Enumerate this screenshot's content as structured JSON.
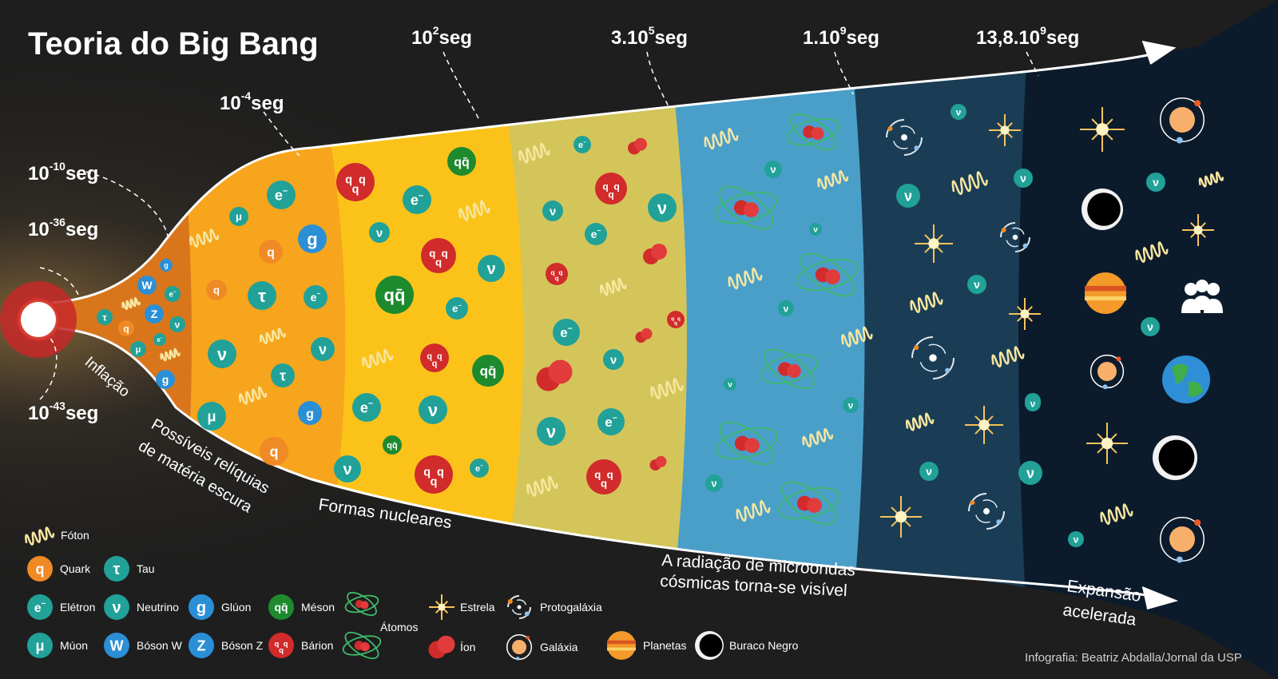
{
  "title": "Teoria do Big Bang",
  "credit": "Infografia: Beatriz Abdalla/Jornal da USP",
  "times": [
    {
      "base": "10",
      "exp": "-43",
      "unit": "seg"
    },
    {
      "base": "10",
      "exp": "-36",
      "unit": "seg"
    },
    {
      "base": "10",
      "exp": "-10",
      "unit": "seg"
    },
    {
      "base": "10",
      "exp": "-4",
      "unit": "seg"
    },
    {
      "base": "10",
      "exp": "2",
      "unit": "seg"
    },
    {
      "base": "3.10",
      "exp": "5",
      "unit": "seg"
    },
    {
      "base": "1.10",
      "exp": "9",
      "unit": "seg"
    },
    {
      "base": "13,8.10",
      "exp": "9",
      "unit": "seg"
    }
  ],
  "stages": {
    "inflation": "Inflação",
    "dark_matter_1": "Possíveis relíquias",
    "dark_matter_2": "de matéria escura",
    "nuclear": "Formas nucleares",
    "cmb_1": "A radiação de microondas",
    "cmb_2": "cósmicas torna-se visível",
    "accel_1": "Expansão",
    "accel_2": "acelerada"
  },
  "symbols": {
    "quark": "q",
    "tau": "τ",
    "electron": "e",
    "electron_sup": "−",
    "neutrino": "ν",
    "gluon": "g",
    "muon": "μ",
    "boson_w": "W",
    "boson_z": "Z",
    "meson": "qq̄",
    "baryon": "q"
  },
  "legend": {
    "foton": "Fóton",
    "quark": "Quark",
    "tau": "Tau",
    "eletron": "Elétron",
    "neutrino": "Neutrino",
    "gluon": "Glúon",
    "meson": "Méson",
    "atomos": "Átomos",
    "estrela": "Estrela",
    "protogalaxia": "Protogaláxia",
    "muon": "Múon",
    "boson_w": "Bóson W",
    "boson_z": "Bóson Z",
    "barion": "Bárion",
    "ion": "Íon",
    "galaxia": "Galáxia",
    "planetas": "Planetas",
    "buraco_negro": "Buraco Negro"
  },
  "colors": {
    "background": "#1e1e1e",
    "inflation_zone": "#e0821f",
    "zone_quarks": "#f7a51c",
    "zone_nuclear": "#fbc31a",
    "zone_atoms": "#d8c45a",
    "zone_cmb": "#4a9fc9",
    "zone_stars": "#2f6f8c",
    "zone_galaxies": "#153247",
    "zone_accelerated": "#0c1b2c",
    "teal_particle": "#21a198",
    "orange_particle": "#f08a24",
    "blue_particle": "#2b8fd6",
    "green_particle": "#1d8a2e",
    "red_particle": "#d12b2b",
    "photon": "#f8e6a0"
  }
}
